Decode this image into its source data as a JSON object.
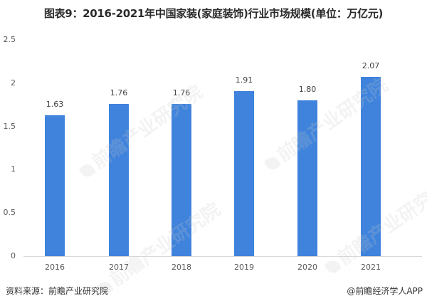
{
  "title": "图表9：2016-2021年中国家装(家庭装饰)行业市场规模(单位：万亿元)",
  "footer": {
    "source": "资料来源：前瞻产业研究院",
    "credit": "@前瞻经济学人APP"
  },
  "watermark": "前瞻产业研究院",
  "colors": {
    "bar": "#3f83dc",
    "axis": "#d9d9d9"
  },
  "chart_data": {
    "type": "bar",
    "title": "图表9：2016-2021年中国家装(家庭装饰)行业市场规模(单位：万亿元)",
    "categories": [
      "2016",
      "2017",
      "2018",
      "2019",
      "2020",
      "2021"
    ],
    "values": [
      1.63,
      1.76,
      1.76,
      1.91,
      1.8,
      2.07
    ],
    "value_labels": [
      "1.63",
      "1.76",
      "1.76",
      "1.91",
      "1.80",
      "2.07"
    ],
    "xlabel": "",
    "ylabel": "",
    "ylim": [
      0,
      2.5
    ],
    "yticks": [
      "0",
      "0.5",
      "1",
      "1.5",
      "2",
      "2.5"
    ],
    "grid": false,
    "legend": "none",
    "unit": "万亿元"
  }
}
